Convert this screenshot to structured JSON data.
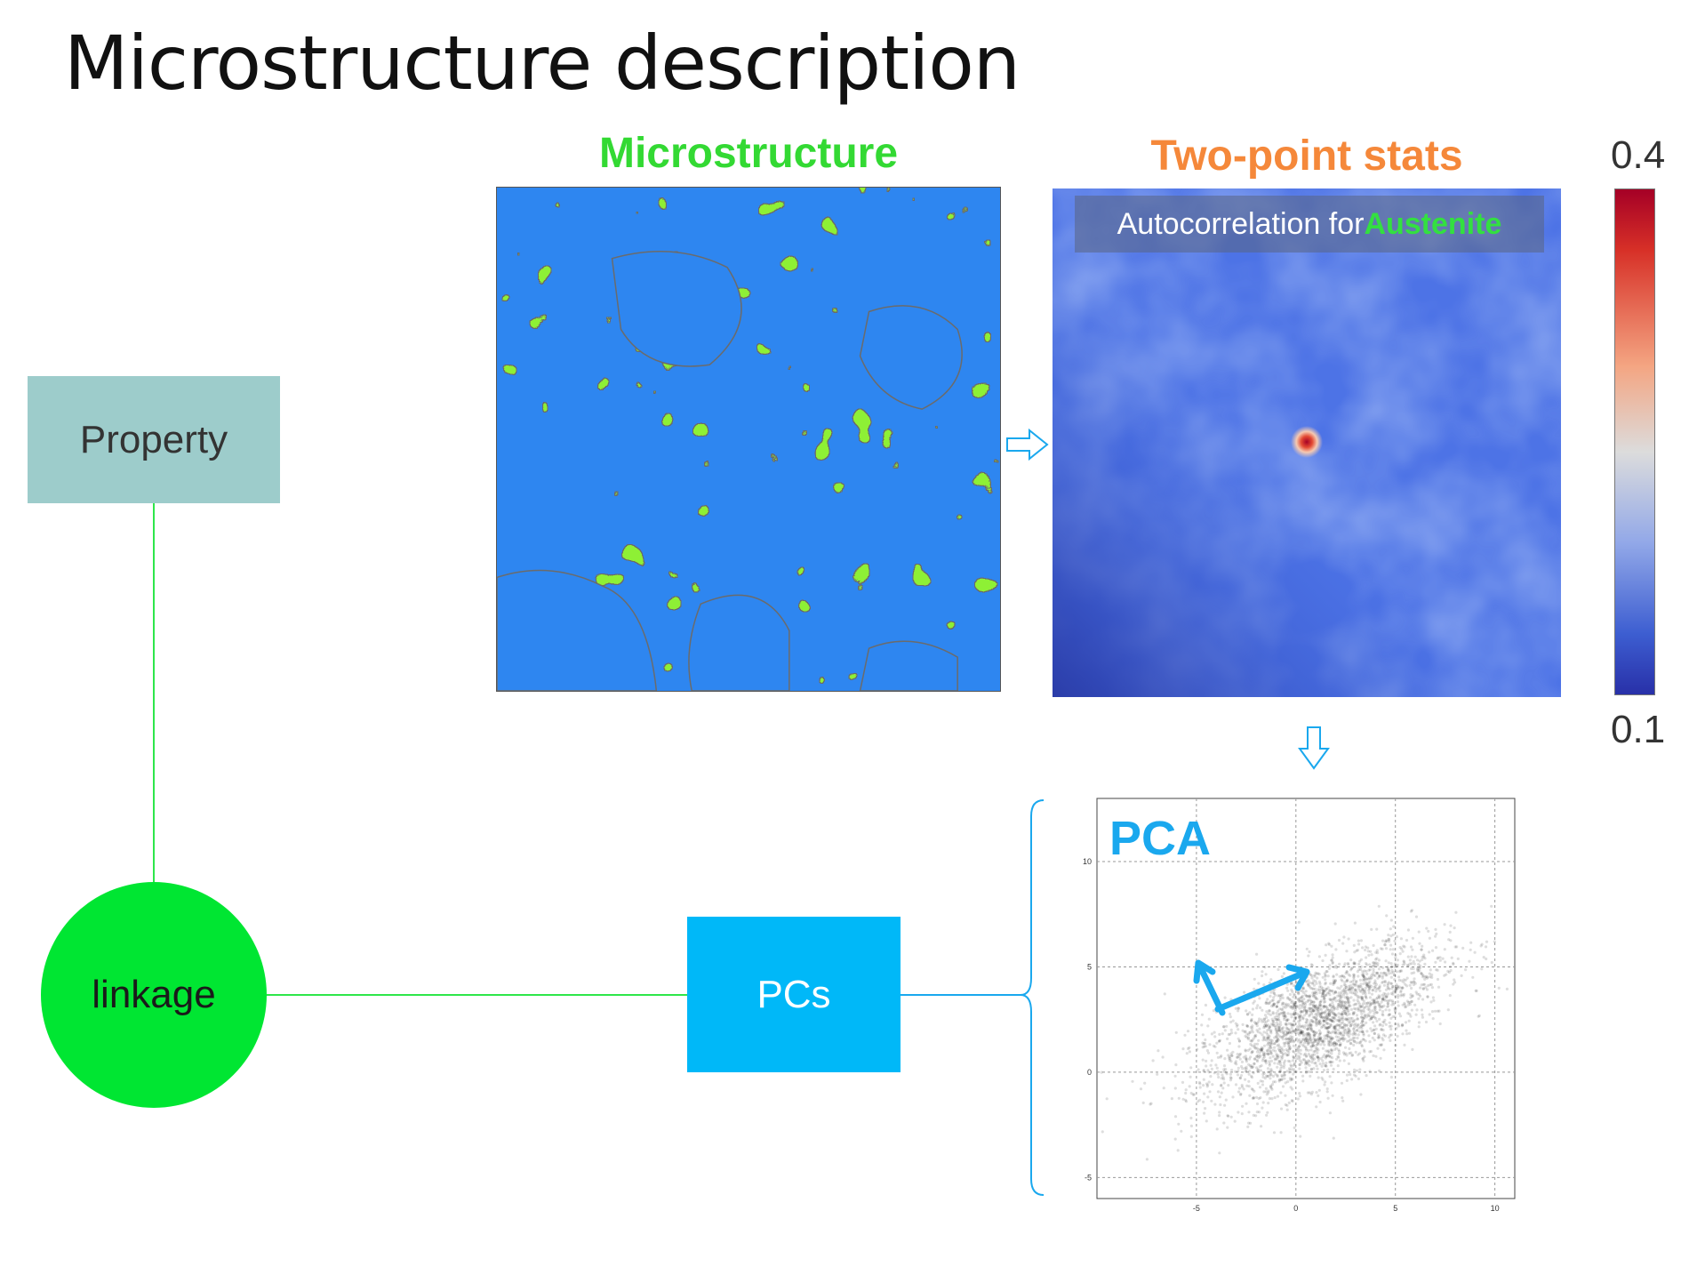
{
  "title": "Microstructure description",
  "microstructure": {
    "heading": "Microstructure"
  },
  "two_point_stats": {
    "heading": "Two-point stats",
    "caption_prefix": "Autocorrelation for ",
    "caption_phase": "Austenite",
    "colorbar_max": "0.4",
    "colorbar_min": "0.1"
  },
  "nodes": {
    "property": "Property",
    "linkage": "linkage",
    "pcs": "PCs"
  },
  "pca": {
    "label": "PCA",
    "x_ticks": [
      "-5",
      "0",
      "5",
      "10"
    ],
    "y_ticks": [
      "10",
      "5",
      "0",
      "-5"
    ]
  },
  "colors": {
    "microstructure_heading": "#33d933",
    "two_point_heading": "#f5883a",
    "phase_green": "#8ef035",
    "phase_blue": "#2e86f0",
    "property_box": "#9dcccb",
    "linkage_node": "#00e632",
    "pcs_box": "#00b8f8",
    "connector_line": "#2ee64a",
    "arrow": "#1aa8ee"
  }
}
